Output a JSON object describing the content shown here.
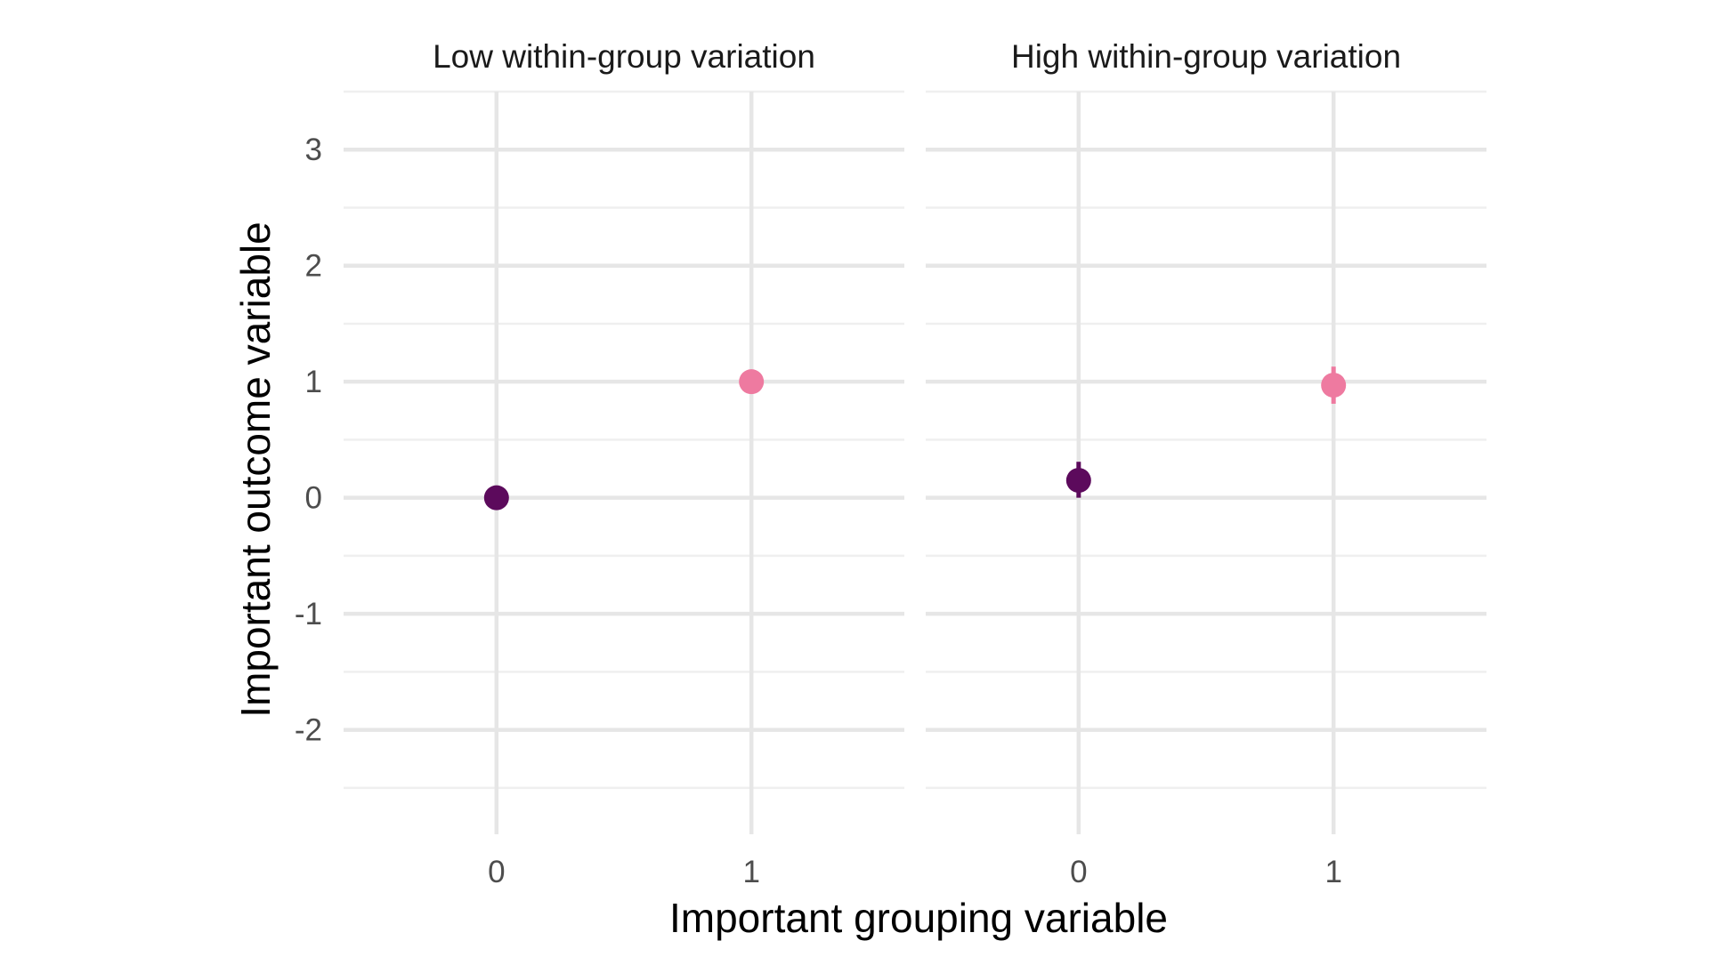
{
  "chart_data": {
    "type": "scatter",
    "xlabel": "Important grouping variable",
    "ylabel": "Important outcome variable",
    "x_ticks": [
      "0",
      "1"
    ],
    "y_ticks": [
      "3",
      "2",
      "1",
      "0",
      "-1",
      "-2"
    ],
    "xlim": [
      -0.6,
      1.6
    ],
    "ylim": [
      -2.9,
      3.5
    ],
    "grid": true,
    "legend": "none",
    "colors": {
      "group_0": "#5c0a5c",
      "group_1": "#ee7aa0"
    },
    "panels": [
      {
        "title": "Low within-group variation",
        "points": [
          {
            "x": 0,
            "y": 0.0,
            "ymin": 0.0,
            "ymax": 0.0
          },
          {
            "x": 1,
            "y": 1.0,
            "ymin": 1.0,
            "ymax": 1.0
          }
        ]
      },
      {
        "title": "High within-group variation",
        "points": [
          {
            "x": 0,
            "y": 0.15,
            "ymin": 0.0,
            "ymax": 0.31
          },
          {
            "x": 1,
            "y": 0.97,
            "ymin": 0.81,
            "ymax": 1.13
          }
        ]
      }
    ]
  }
}
